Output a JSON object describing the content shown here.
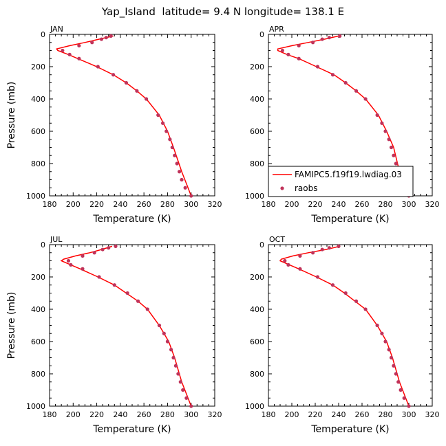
{
  "title": "Yap_Island  latitude= 9.4 N longitude= 138.1 E",
  "colors": {
    "model": "#ff0000",
    "obs": "#c0335a"
  },
  "legend": {
    "model_label": "FAMIPC5.f19f19.lwdiag.03",
    "obs_label": "raobs"
  },
  "chart_data": [
    {
      "type": "line",
      "panel": "JAN",
      "xlabel": "Temperature (K)",
      "ylabel": "Pressure (mb)",
      "xlim": [
        180,
        320
      ],
      "ylim": [
        1000,
        0
      ],
      "x_ticks": [
        180,
        200,
        220,
        240,
        260,
        280,
        300,
        320
      ],
      "y_ticks": [
        0,
        200,
        400,
        600,
        800,
        1000
      ],
      "model": {
        "pressure": [
          10,
          30,
          50,
          70,
          90,
          100,
          125,
          150,
          200,
          250,
          300,
          350,
          400,
          500,
          600,
          700,
          850,
          925,
          1000
        ],
        "temperature": [
          234,
          222,
          210,
          197,
          186,
          187,
          196,
          204,
          220,
          234,
          245,
          254,
          262,
          273,
          280,
          285,
          292,
          296,
          300
        ]
      },
      "obs": {
        "pressure": [
          10,
          20,
          30,
          50,
          70,
          100,
          125,
          150,
          200,
          250,
          300,
          350,
          400,
          500,
          550,
          600,
          650,
          700,
          750,
          800,
          850,
          900,
          950,
          1000
        ],
        "temperature": [
          232,
          228,
          224,
          216,
          205,
          191,
          197,
          205,
          221,
          234,
          245,
          254,
          262,
          272,
          276,
          279,
          282,
          284,
          286,
          288,
          290,
          292,
          295,
          300
        ]
      }
    },
    {
      "type": "line",
      "panel": "APR",
      "xlabel": "Temperature (K)",
      "ylabel": "Pressure (mb)",
      "xlim": [
        180,
        320
      ],
      "ylim": [
        1000,
        0
      ],
      "x_ticks": [
        180,
        200,
        220,
        240,
        260,
        280,
        300,
        320
      ],
      "y_ticks": [
        0,
        200,
        400,
        600,
        800,
        1000
      ],
      "model": {
        "pressure": [
          10,
          30,
          50,
          70,
          90,
          100,
          125,
          150,
          200,
          250,
          300,
          350,
          400,
          500,
          600,
          700,
          850,
          925,
          1000
        ],
        "temperature": [
          240,
          228,
          214,
          200,
          188,
          188,
          196,
          206,
          221,
          236,
          246,
          255,
          263,
          274,
          281,
          287,
          292,
          296,
          300
        ]
      },
      "obs": {
        "pressure": [
          10,
          20,
          30,
          50,
          70,
          100,
          125,
          150,
          200,
          250,
          300,
          350,
          400,
          500,
          550,
          600,
          650,
          700,
          750,
          800,
          850,
          900,
          950,
          1000
        ],
        "temperature": [
          241,
          232,
          226,
          218,
          206,
          192,
          197,
          206,
          222,
          235,
          246,
          255,
          263,
          273,
          277,
          280,
          283,
          285,
          287,
          289,
          291,
          293,
          297,
          300
        ]
      }
    },
    {
      "type": "line",
      "panel": "JUL",
      "xlabel": "Temperature (K)",
      "ylabel": "Pressure (mb)",
      "xlim": [
        180,
        320
      ],
      "ylim": [
        1000,
        0
      ],
      "x_ticks": [
        180,
        200,
        220,
        240,
        260,
        280,
        300,
        320
      ],
      "y_ticks": [
        0,
        200,
        400,
        600,
        800,
        1000
      ],
      "model": {
        "pressure": [
          10,
          30,
          50,
          70,
          90,
          100,
          125,
          150,
          200,
          250,
          300,
          350,
          400,
          500,
          600,
          700,
          850,
          925,
          1000
        ],
        "temperature": [
          233,
          224,
          214,
          202,
          192,
          190,
          198,
          206,
          221,
          235,
          245,
          255,
          263,
          273,
          281,
          286,
          292,
          296,
          300
        ]
      },
      "obs": {
        "pressure": [
          10,
          20,
          30,
          50,
          70,
          100,
          125,
          150,
          200,
          250,
          300,
          350,
          400,
          500,
          550,
          600,
          650,
          700,
          750,
          800,
          850,
          900,
          950,
          1000
        ],
        "temperature": [
          236,
          230,
          225,
          218,
          208,
          196,
          198,
          208,
          222,
          235,
          246,
          255,
          263,
          273,
          277,
          280,
          283,
          285,
          287,
          289,
          291,
          293,
          296,
          300
        ]
      }
    },
    {
      "type": "line",
      "panel": "OCT",
      "xlabel": "Temperature (K)",
      "ylabel": "Pressure (mb)",
      "xlim": [
        180,
        320
      ],
      "ylim": [
        1000,
        0
      ],
      "x_ticks": [
        180,
        200,
        220,
        240,
        260,
        280,
        300,
        320
      ],
      "y_ticks": [
        0,
        200,
        400,
        600,
        800,
        1000
      ],
      "model": {
        "pressure": [
          10,
          30,
          50,
          70,
          90,
          100,
          125,
          150,
          200,
          250,
          300,
          350,
          400,
          500,
          600,
          700,
          850,
          925,
          1000
        ],
        "temperature": [
          241,
          229,
          214,
          201,
          191,
          190,
          198,
          206,
          221,
          235,
          245,
          254,
          263,
          273,
          281,
          286,
          292,
          296,
          300
        ]
      },
      "obs": {
        "pressure": [
          10,
          20,
          30,
          50,
          70,
          100,
          125,
          150,
          200,
          250,
          300,
          350,
          400,
          500,
          550,
          600,
          650,
          700,
          750,
          800,
          850,
          900,
          950,
          1000
        ],
        "temperature": [
          240,
          232,
          226,
          218,
          207,
          194,
          197,
          207,
          222,
          235,
          246,
          255,
          263,
          273,
          277,
          280,
          283,
          285,
          287,
          289,
          291,
          293,
          296,
          300
        ]
      }
    }
  ]
}
